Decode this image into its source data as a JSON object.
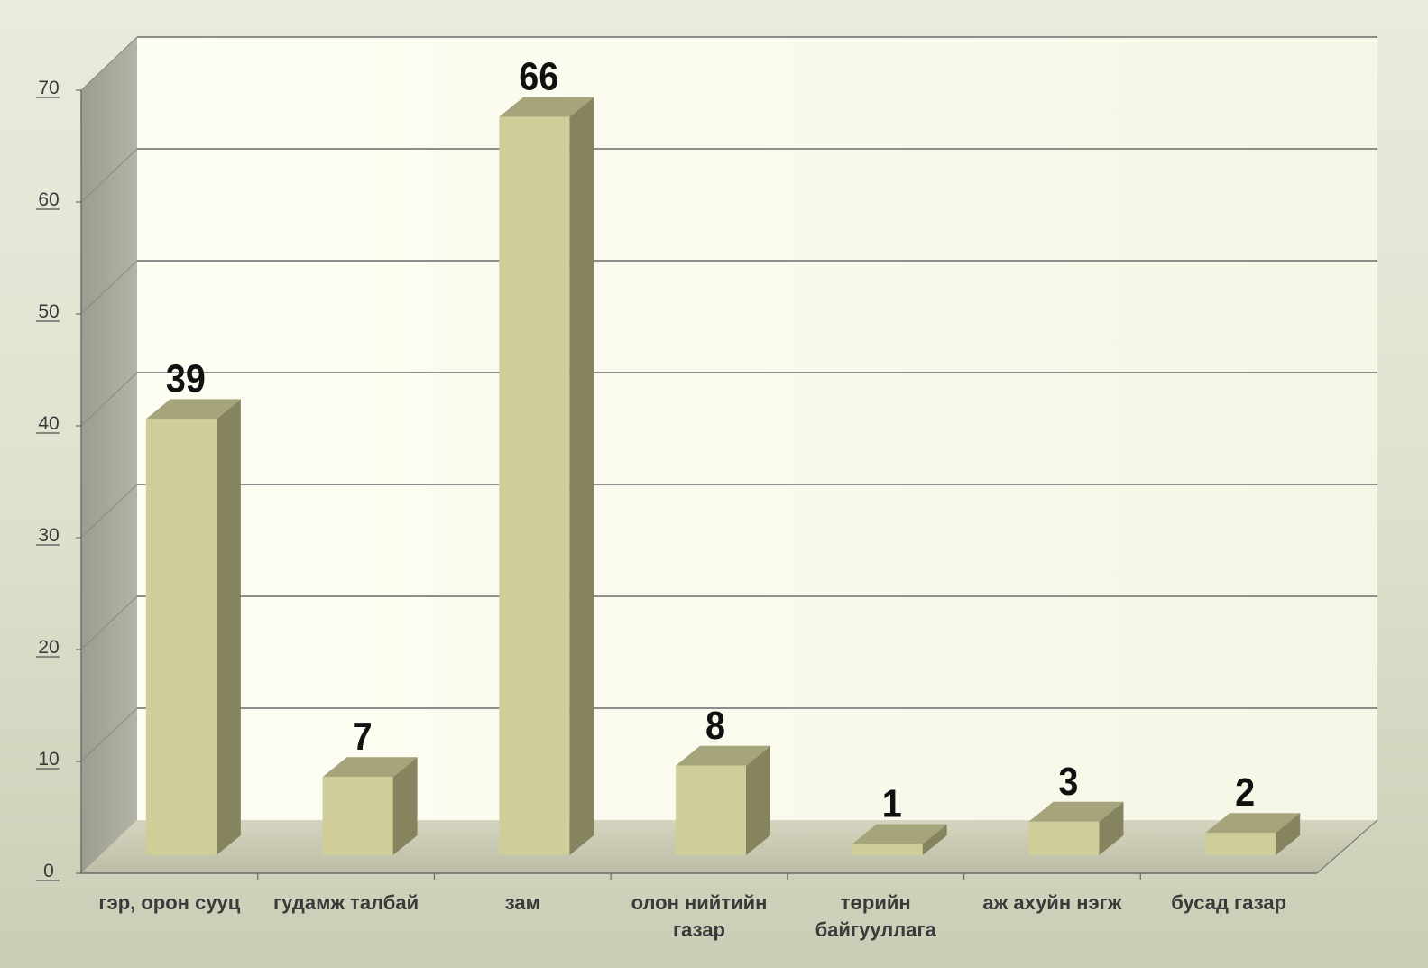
{
  "chart_data": {
    "type": "bar",
    "categories": [
      "гэр, орон сууц",
      "гудамж талбай",
      "зам",
      "олон нийтийн газар",
      "төрийн байгууллага",
      "аж ахуйн  нэгж",
      "бусад газар"
    ],
    "category_lines": [
      [
        "гэр, орон сууц"
      ],
      [
        "гудамж талбай"
      ],
      [
        "зам"
      ],
      [
        "олон нийтийн",
        "газар"
      ],
      [
        "төрийн",
        "байгууллага"
      ],
      [
        "аж ахуйн  нэгж"
      ],
      [
        "бусад газар"
      ]
    ],
    "values": [
      39,
      7,
      66,
      8,
      1,
      3,
      2
    ],
    "data_labels": [
      "39",
      "7",
      "66",
      "8",
      "1",
      "3",
      "2"
    ],
    "y_ticks": [
      "0",
      "10",
      "20",
      "30",
      "40",
      "50",
      "60",
      "70"
    ],
    "ylim": [
      0,
      70
    ],
    "grid": true,
    "style": "3d-column",
    "legend": "none",
    "colors": {
      "bar_front": "#cfcd98",
      "bar_side": "#85845f",
      "bar_top": "#a5a47a",
      "back_wall": "#fbfbf0",
      "side_wall": "#a8a79c",
      "floor": "#c8c8b4",
      "gridline": "#6a6a6a"
    }
  }
}
